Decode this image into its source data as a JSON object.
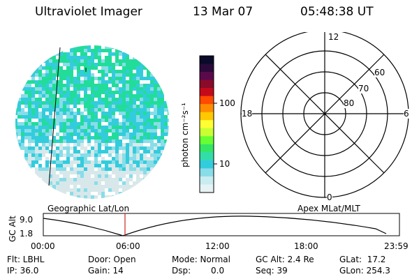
{
  "header": {
    "instrument": "Ultraviolet Imager",
    "date": "13 Mar 07",
    "time": "05:48:38 UT"
  },
  "colorbar": {
    "unit_label": "photon cm⁻²s⁻¹",
    "ticks": [
      "100",
      "10"
    ],
    "colors": [
      "#0a0a2a",
      "#2a0a3a",
      "#5a0a4a",
      "#8a0a2a",
      "#c40a1a",
      "#ff4a00",
      "#ff8c00",
      "#ffc800",
      "#ffff33",
      "#c8ff33",
      "#66ff33",
      "#33e666",
      "#33ddaa",
      "#33ccdd",
      "#88dde8",
      "#c8ecf0",
      "#e6f2f4"
    ]
  },
  "left_panel": {
    "label": "Geographic Lat/Lon",
    "colors": {
      "bright": "#22dd99",
      "mid": "#33ccdd",
      "pale": "#88dde8",
      "faint": "#d8e8ea"
    }
  },
  "right_panel": {
    "label": "Apex MLat/MLT",
    "mlt_labels": {
      "top": "12",
      "left": "18",
      "right": "6",
      "bottom": "0"
    },
    "lat_labels": [
      "60",
      "70",
      "80"
    ]
  },
  "timeline": {
    "ylabel": "GC Alt",
    "yticks": [
      "9.0",
      "1.8"
    ],
    "xticks": [
      "00:00",
      "06:00",
      "12:00",
      "18:00",
      "23:59"
    ],
    "marker_color": "#cc2222"
  },
  "status": {
    "flt": "Flt: LBHL",
    "ip": "IP: 36.0",
    "door": "Door: Open",
    "gain": "Gain: 14",
    "mode": "Mode: Normal",
    "dsp_label": "Dsp:",
    "dsp_value": "0.0",
    "gcalt": "GC Alt: 2.4 Re",
    "seq": "Seq: 39",
    "glat": "GLat:  17.2",
    "glon": "GLon: 254.3"
  }
}
